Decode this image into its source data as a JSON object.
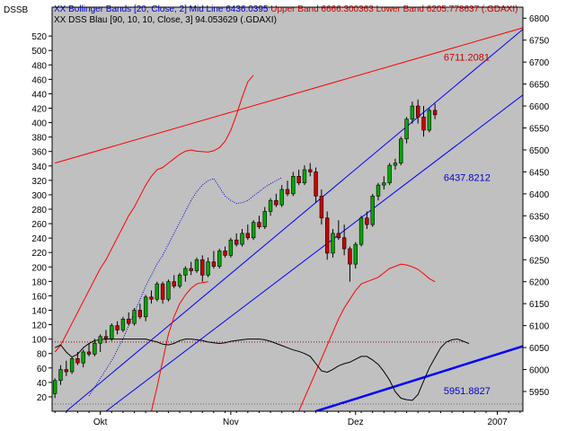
{
  "chart_data": {
    "type": "candlestick",
    "symbol_label": "DSSB",
    "legend": [
      {
        "parts": [
          {
            "text": "XX Bollinger Bands [20, Close, 2] Mid Line 6436.0395 ",
            "color": "#0000cc"
          },
          {
            "text": "Upper Band 6666.300363 Lower Band 6205.778637 (.GDAXI)",
            "color": "#cc0000"
          }
        ]
      },
      {
        "parts": [
          {
            "text": "XX DSS Blau [90, 10, 10, Close, 3] 94.053629 (.GDAXI)",
            "color": "#000000"
          }
        ]
      }
    ],
    "right_axis": {
      "min": 5905,
      "max": 6825,
      "ticks": [
        5950,
        6000,
        6050,
        6100,
        6150,
        6200,
        6250,
        6300,
        6350,
        6400,
        6450,
        6500,
        6550,
        6600,
        6650,
        6700,
        6750,
        6800
      ]
    },
    "left_axis": {
      "min": 0,
      "max": 560,
      "ticks": [
        20,
        40,
        60,
        80,
        100,
        120,
        140,
        160,
        180,
        200,
        220,
        240,
        260,
        280,
        300,
        320,
        340,
        360,
        380,
        400,
        420,
        440,
        460,
        480,
        500,
        520
      ]
    },
    "x_axis": {
      "labels": [
        {
          "text": "Okt",
          "index": 8
        },
        {
          "text": "Nov",
          "index": 31
        },
        {
          "text": "Dez",
          "index": 53
        },
        {
          "text": "2007",
          "index": 78
        }
      ],
      "num_slots": 83
    },
    "colors": {
      "up": "#00aa00",
      "down": "#cc0000",
      "background": "#c0c0c0",
      "upper_band": "#ff0000",
      "lower_band": "#ff0000",
      "mid_line": "#0000cc",
      "channel": "#0000ff",
      "dss": "#000000",
      "resistance": "#ff0000"
    },
    "annotations": [
      {
        "text": "6711.2081",
        "index": 66,
        "value": 6711.2081,
        "color": "#cc0000"
      },
      {
        "text": "6437.8212",
        "index": 66,
        "value": 6437.8212,
        "color": "#0000cc"
      },
      {
        "text": "5951.8827",
        "index": 66,
        "value": 5951.8827,
        "color": "#0000cc"
      }
    ],
    "trend_lines": [
      {
        "name": "resistance",
        "from": [
          0,
          6470
        ],
        "to": [
          83,
          6780
        ],
        "color": "#ff0000",
        "width": 1
      },
      {
        "name": "channel-upper",
        "from": [
          2,
          5905
        ],
        "to": [
          83,
          6780
        ],
        "color": "#0000ff",
        "width": 1
      },
      {
        "name": "channel-lower",
        "from": [
          9,
          5905
        ],
        "to": [
          83,
          6630
        ],
        "color": "#0000ff",
        "width": 1
      },
      {
        "name": "support",
        "from": [
          46,
          5905
        ],
        "to": [
          83,
          6055
        ],
        "color": "#0000ff",
        "width": 2.5
      }
    ],
    "dss_reference": 96,
    "candles": [
      [
        5945,
        5980,
        5935,
        5975
      ],
      [
        5975,
        6010,
        5965,
        6000
      ],
      [
        6000,
        6020,
        5985,
        5995
      ],
      [
        5995,
        6030,
        5990,
        6025
      ],
      [
        6025,
        6040,
        6010,
        6015
      ],
      [
        6015,
        6045,
        6005,
        6040
      ],
      [
        6040,
        6060,
        6030,
        6035
      ],
      [
        6035,
        6070,
        6030,
        6060
      ],
      [
        6060,
        6080,
        6040,
        6075
      ],
      [
        6075,
        6090,
        6060,
        6070
      ],
      [
        6070,
        6105,
        6065,
        6100
      ],
      [
        6100,
        6110,
        6080,
        6090
      ],
      [
        6090,
        6120,
        6085,
        6115
      ],
      [
        6115,
        6130,
        6100,
        6105
      ],
      [
        6105,
        6140,
        6100,
        6135
      ],
      [
        6135,
        6150,
        6115,
        6120
      ],
      [
        6120,
        6170,
        6110,
        6165
      ],
      [
        6165,
        6180,
        6150,
        6160
      ],
      [
        6160,
        6200,
        6155,
        6195
      ],
      [
        6195,
        6200,
        6150,
        6160
      ],
      [
        6160,
        6205,
        6155,
        6200
      ],
      [
        6200,
        6215,
        6185,
        6190
      ],
      [
        6190,
        6220,
        6185,
        6215
      ],
      [
        6215,
        6235,
        6200,
        6230
      ],
      [
        6230,
        6245,
        6215,
        6225
      ],
      [
        6225,
        6255,
        6220,
        6250
      ],
      [
        6250,
        6260,
        6200,
        6215
      ],
      [
        6215,
        6255,
        6210,
        6245
      ],
      [
        6245,
        6270,
        6230,
        6235
      ],
      [
        6235,
        6275,
        6230,
        6270
      ],
      [
        6270,
        6280,
        6255,
        6260
      ],
      [
        6260,
        6300,
        6255,
        6295
      ],
      [
        6295,
        6310,
        6280,
        6285
      ],
      [
        6285,
        6320,
        6280,
        6310
      ],
      [
        6310,
        6330,
        6295,
        6300
      ],
      [
        6300,
        6340,
        6295,
        6335
      ],
      [
        6335,
        6350,
        6320,
        6325
      ],
      [
        6325,
        6370,
        6320,
        6360
      ],
      [
        6360,
        6390,
        6350,
        6385
      ],
      [
        6385,
        6400,
        6370,
        6375
      ],
      [
        6375,
        6420,
        6370,
        6410
      ],
      [
        6410,
        6430,
        6395,
        6400
      ],
      [
        6400,
        6450,
        6395,
        6440
      ],
      [
        6440,
        6455,
        6420,
        6425
      ],
      [
        6425,
        6465,
        6420,
        6455
      ],
      [
        6455,
        6470,
        6440,
        6450
      ],
      [
        6450,
        6460,
        6380,
        6395
      ],
      [
        6395,
        6410,
        6330,
        6345
      ],
      [
        6345,
        6360,
        6250,
        6265
      ],
      [
        6265,
        6320,
        6255,
        6310
      ],
      [
        6310,
        6340,
        6295,
        6300
      ],
      [
        6300,
        6330,
        6260,
        6275
      ],
      [
        6275,
        6280,
        6200,
        6240
      ],
      [
        6240,
        6290,
        6230,
        6285
      ],
      [
        6285,
        6350,
        6280,
        6345
      ],
      [
        6345,
        6360,
        6320,
        6330
      ],
      [
        6330,
        6400,
        6325,
        6395
      ],
      [
        6395,
        6425,
        6385,
        6420
      ],
      [
        6420,
        6440,
        6410,
        6425
      ],
      [
        6425,
        6470,
        6420,
        6465
      ],
      [
        6465,
        6480,
        6455,
        6470
      ],
      [
        6470,
        6530,
        6465,
        6525
      ],
      [
        6525,
        6575,
        6515,
        6570
      ],
      [
        6570,
        6610,
        6560,
        6600
      ],
      [
        6600,
        6615,
        6560,
        6575
      ],
      [
        6575,
        6600,
        6530,
        6545
      ],
      [
        6545,
        6595,
        6540,
        6590
      ],
      [
        6590,
        6605,
        6570,
        6580
      ]
    ],
    "upper_band": [
      6040,
      6055,
      6080,
      6105,
      6130,
      6155,
      6180,
      6205,
      6230,
      6250,
      6275,
      6300,
      6325,
      6350,
      6370,
      6395,
      6420,
      6440,
      6455,
      6460,
      6470,
      6480,
      6490,
      6497,
      6500,
      6497,
      6496,
      6495,
      6498,
      6505,
      6520,
      6545,
      6580,
      6620,
      6655,
      6670
    ],
    "lower_band": [
      5905,
      5935,
      5965,
      5995,
      6025,
      6055,
      6085,
      6115,
      6140,
      6160,
      6180,
      6195,
      6200,
      6205,
      6210,
      6220,
      6230,
      6235,
      6240,
      6238,
      6234,
      6228,
      6218,
      6207,
      6200
    ],
    "mid_line": [
      5940,
      5960,
      5980,
      6000,
      6020,
      6045,
      6070,
      6100,
      6130,
      6160,
      6190,
      6215,
      6240,
      6260,
      6285,
      6310,
      6335,
      6360,
      6385,
      6405,
      6420,
      6430,
      6435,
      6415,
      6395,
      6385,
      6378,
      6380,
      6385,
      6395,
      6405,
      6415,
      6423,
      6430,
      6437
    ],
    "dss_values": [
      88,
      92,
      82,
      75,
      79,
      88,
      94,
      98,
      99,
      100,
      100,
      100,
      100,
      100,
      100,
      100,
      100,
      98,
      96,
      93,
      92,
      94,
      98,
      100,
      100,
      99,
      98,
      96,
      95,
      94,
      95,
      97,
      98,
      99,
      100,
      100,
      100,
      99,
      97,
      94,
      91,
      88,
      85,
      83,
      80,
      76,
      66,
      56,
      54,
      58,
      63,
      66,
      68,
      72,
      76,
      76,
      71,
      65,
      55,
      43,
      27,
      18,
      16,
      15,
      23,
      42,
      60,
      74,
      88,
      96,
      99,
      100,
      97,
      94
    ]
  }
}
